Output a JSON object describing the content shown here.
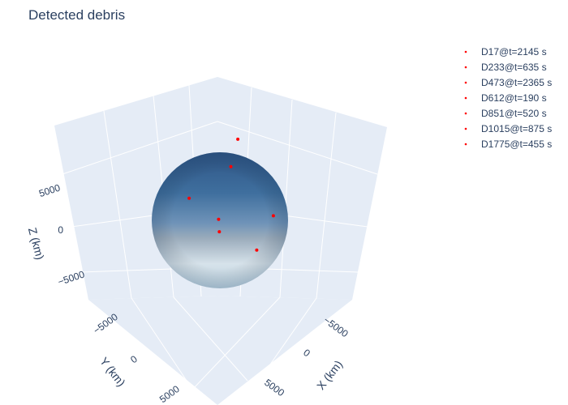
{
  "chart_data": {
    "type": "scatter3d",
    "title": "Detected debris",
    "xlabel": "X (km)",
    "ylabel": "Y (km)",
    "zlabel": "Z (km)",
    "x_ticks": [
      "−5000",
      "0",
      "5000"
    ],
    "y_ticks": [
      "−5000",
      "0",
      "5000"
    ],
    "z_ticks": [
      "5000",
      "0",
      "−5000"
    ],
    "axis_range": [
      -9000,
      9000
    ],
    "grid": true,
    "legend_placement": "top-right",
    "marker_color": "#ff0000",
    "sphere": {
      "colors": [
        "#2f5687",
        "#3f6f9e",
        "#6f93b8",
        "#9aabbb",
        "#d6e2ea",
        "#bcd3e2"
      ]
    },
    "series": [
      {
        "name": "D17@t=2145 s",
        "x": -3000,
        "y": -2800,
        "z": 7600
      },
      {
        "name": "D233@t=635 s",
        "x": -1800,
        "y": -1500,
        "z": 5200
      },
      {
        "name": "D473@t=2365 s",
        "x": -7700,
        "y": 400,
        "z": -1500
      },
      {
        "name": "D612@t=190 s",
        "x": 5000,
        "y": 3800,
        "z": 5200
      },
      {
        "name": "D851@t=520 s",
        "x": 200,
        "y": 100,
        "z": 200
      },
      {
        "name": "D1015@t=875 s",
        "x": 200,
        "y": 800,
        "z": -1000
      },
      {
        "name": "D1775@t=455 s",
        "x": -5600,
        "y": -1800,
        "z": -5600
      }
    ]
  }
}
